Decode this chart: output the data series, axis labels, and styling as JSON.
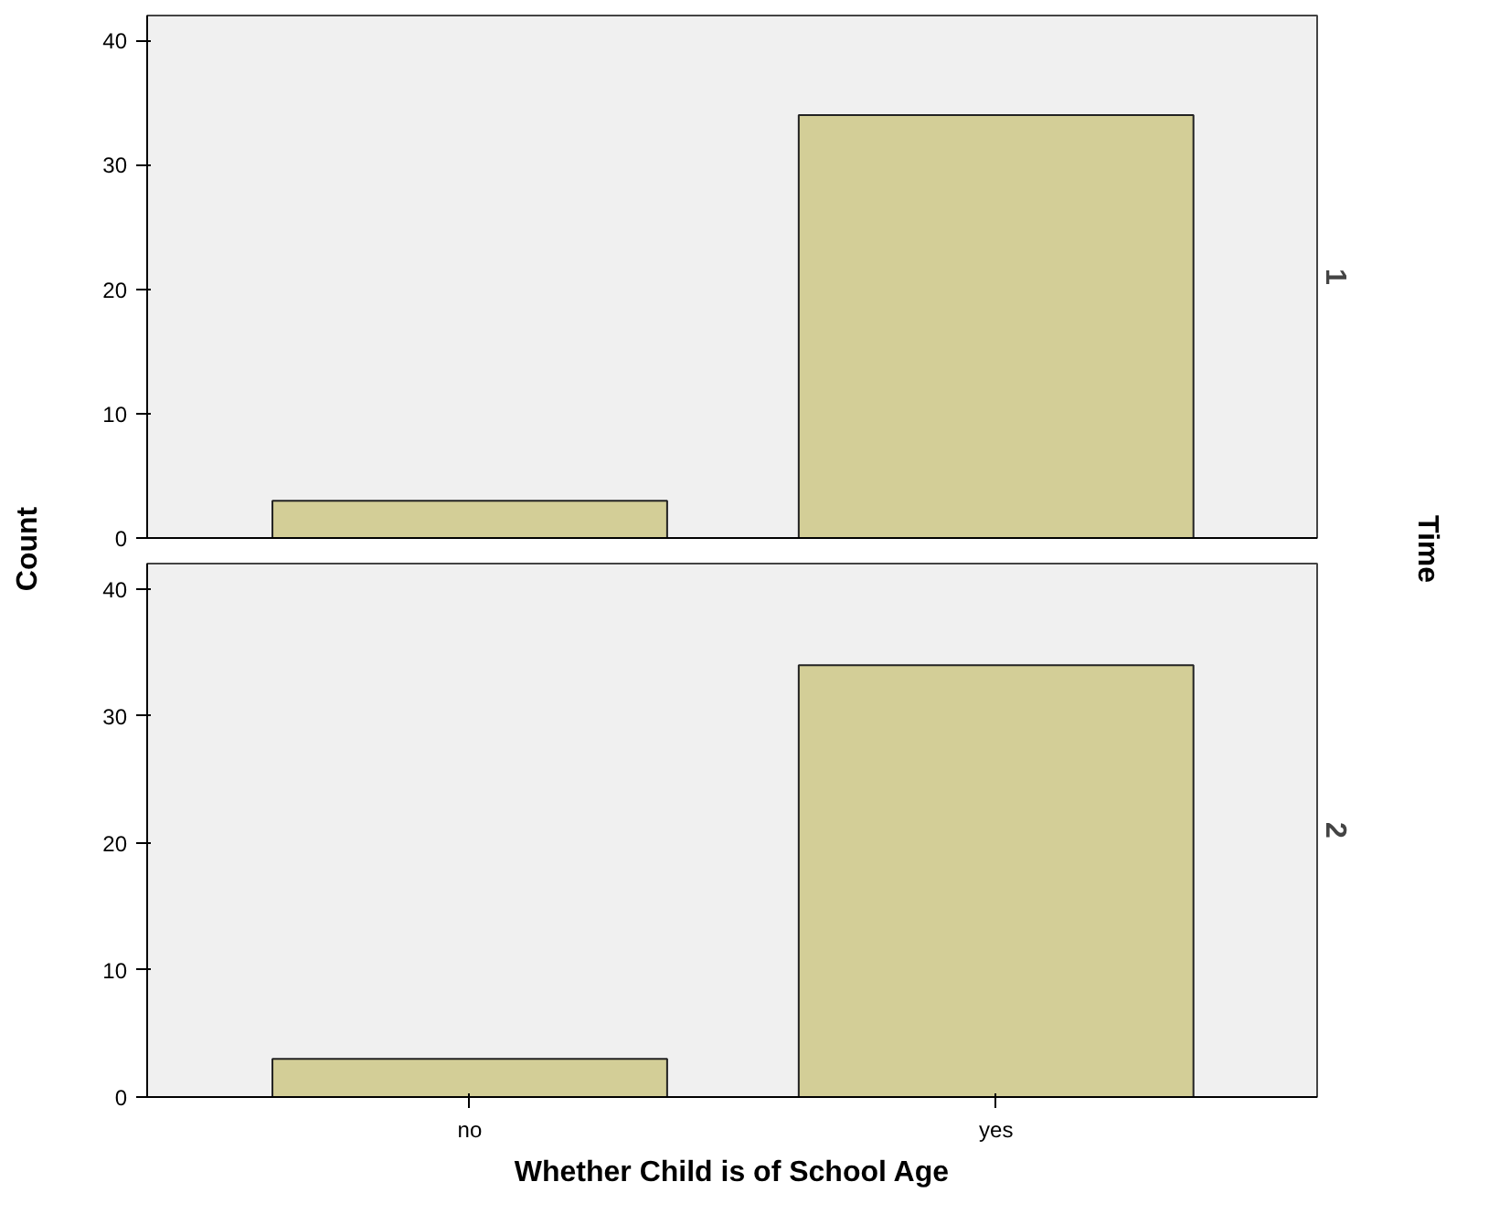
{
  "chart_data": [
    {
      "type": "bar",
      "ylabel": "Count",
      "y2label": "1",
      "annotations": [
        "Time"
      ],
      "categories": [
        null,
        null
      ],
      "values": [
        3,
        34
      ],
      "color": "#d3ce97",
      "ylim": [
        0,
        42
      ],
      "yticks": [
        0,
        10,
        20,
        30,
        40
      ],
      "grid": false,
      "tick_labels": "y"
    },
    {
      "type": "bar",
      "xlabel": "Whether Child is of School Age",
      "y2label": "2",
      "categories": [
        "no",
        "yes"
      ],
      "values": [
        3,
        34
      ],
      "color": "#d3ce97",
      "ylim": [
        0,
        42
      ],
      "yticks": [
        0,
        10,
        20,
        30,
        40
      ],
      "grid": false
    }
  ]
}
